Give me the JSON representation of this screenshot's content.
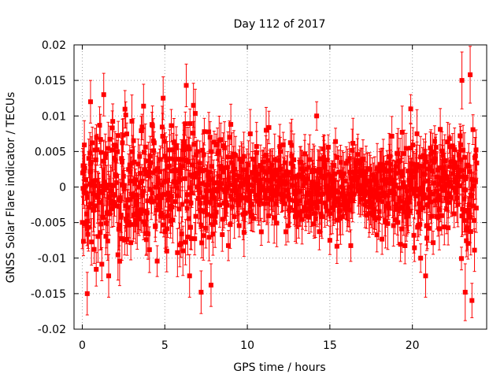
{
  "chart_data": {
    "type": "scatter",
    "title": "Day 112 of 2017",
    "xlabel": "GPS time / hours",
    "ylabel": "GNSS Solar Flare indicator / TECUs",
    "xlim": [
      -0.5,
      24.5
    ],
    "ylim": [
      -0.02,
      0.02
    ],
    "x_ticks": [
      0,
      5,
      10,
      15,
      20
    ],
    "x_tick_labels": [
      "0",
      "5",
      "10",
      "15",
      "20"
    ],
    "y_ticks": [
      -0.02,
      -0.015,
      -0.01,
      -0.005,
      0,
      0.005,
      0.01,
      0.015,
      0.02
    ],
    "y_tick_labels": [
      "-0.02",
      "-0.015",
      "-0.01",
      "-0.005",
      "0",
      "0.005",
      "0.01",
      "0.015",
      "0.02"
    ],
    "grid": true,
    "legend": "none",
    "color": "#ff0000",
    "error_bars": true,
    "points_x_range": [
      0,
      23.9
    ],
    "sample_points": [
      {
        "x": 0.05,
        "y": 0.003,
        "err": 0.002
      },
      {
        "x": 0.3,
        "y": -0.015,
        "err": 0.003
      },
      {
        "x": 0.5,
        "y": 0.012,
        "err": 0.003
      },
      {
        "x": 1.3,
        "y": 0.013,
        "err": 0.003
      },
      {
        "x": 1.6,
        "y": -0.0125,
        "err": 0.003
      },
      {
        "x": 4.9,
        "y": 0.0125,
        "err": 0.003
      },
      {
        "x": 6.3,
        "y": 0.0143,
        "err": 0.003
      },
      {
        "x": 6.5,
        "y": -0.0125,
        "err": 0.003
      },
      {
        "x": 7.2,
        "y": -0.0148,
        "err": 0.003
      },
      {
        "x": 7.8,
        "y": -0.0138,
        "err": 0.003
      },
      {
        "x": 12.0,
        "y": 0.005,
        "err": 0.002
      },
      {
        "x": 14.2,
        "y": 0.01,
        "err": 0.002
      },
      {
        "x": 15.0,
        "y": -0.0075,
        "err": 0.002
      },
      {
        "x": 19.9,
        "y": 0.011,
        "err": 0.002
      },
      {
        "x": 20.5,
        "y": -0.01,
        "err": 0.002
      },
      {
        "x": 20.8,
        "y": -0.0125,
        "err": 0.003
      },
      {
        "x": 23.0,
        "y": 0.015,
        "err": 0.004
      },
      {
        "x": 23.2,
        "y": -0.0148,
        "err": 0.004
      },
      {
        "x": 23.5,
        "y": 0.0158,
        "err": 0.004
      }
    ]
  }
}
